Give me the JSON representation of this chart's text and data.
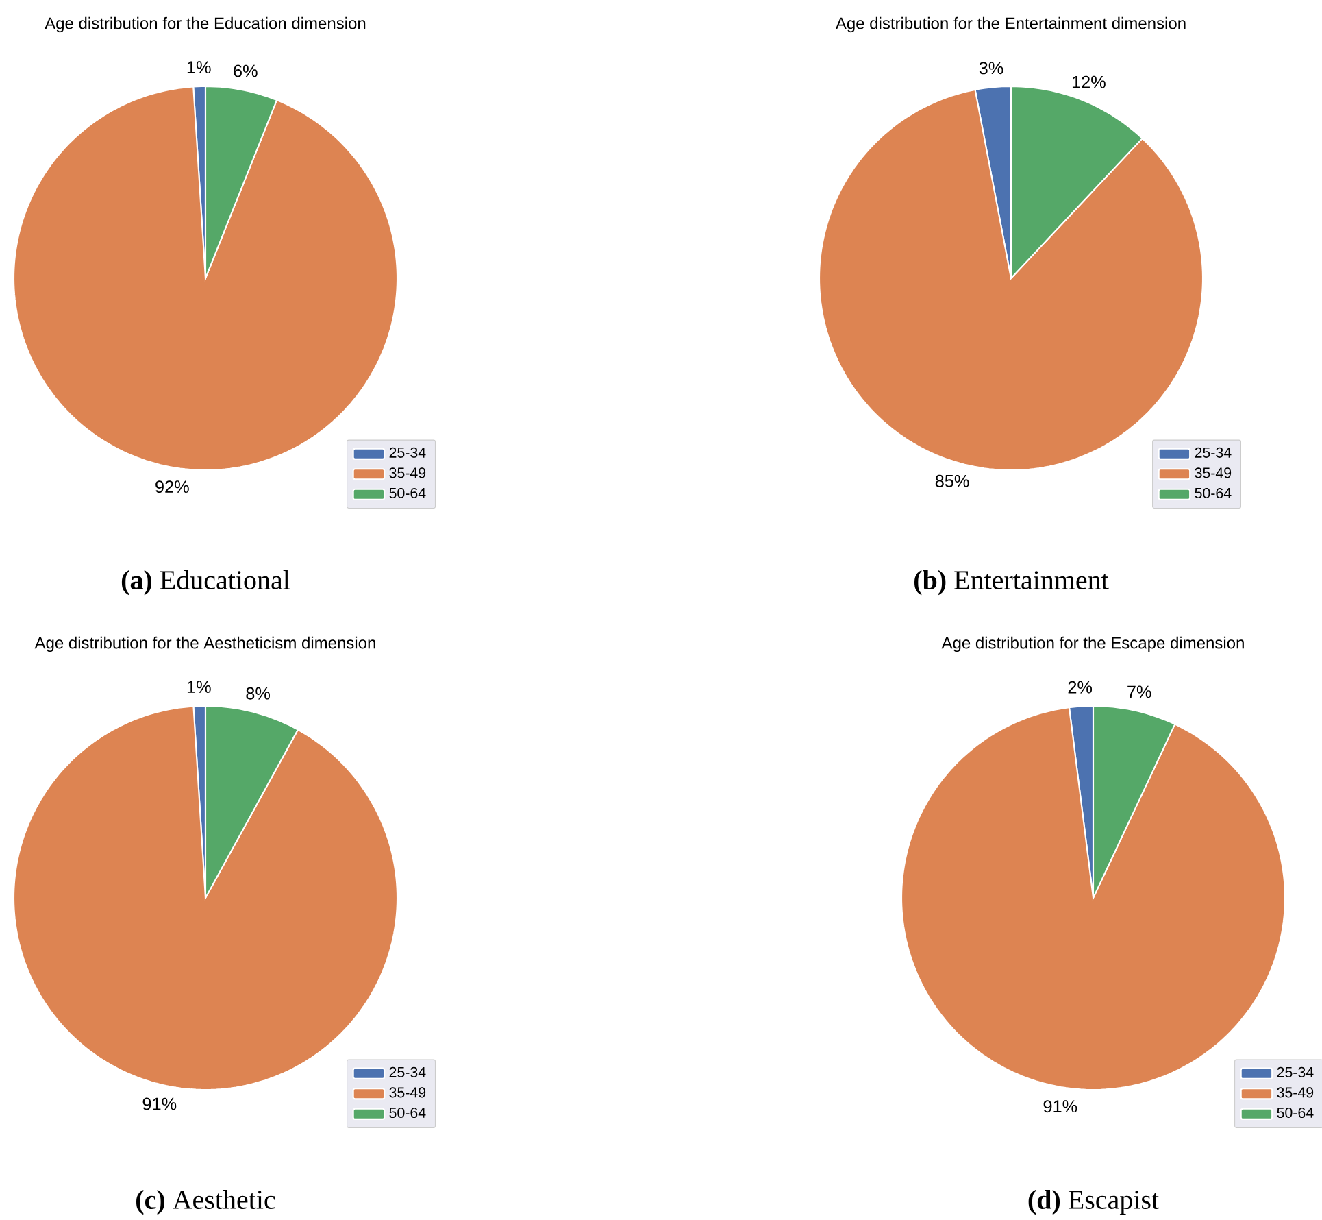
{
  "chart_data": [
    {
      "type": "pie",
      "title": "Age distribution for the Education dimension",
      "categories": [
        "25-34",
        "35-49",
        "50-64"
      ],
      "values": [
        1,
        92,
        6
      ],
      "colors": [
        "#4c72b0",
        "#dd8452",
        "#55a868"
      ],
      "value_labels": [
        "1%",
        "92%",
        "6%"
      ],
      "legend": "bottom right",
      "annotations": [
        "**(a)** Educational"
      ]
    },
    {
      "type": "pie",
      "title": "Age distribution for the Entertainment dimension",
      "categories": [
        "25-34",
        "35-49",
        "50-64"
      ],
      "values": [
        3,
        85,
        12
      ],
      "colors": [
        "#4c72b0",
        "#dd8452",
        "#55a868"
      ],
      "value_labels": [
        "3%",
        "85%",
        "12%"
      ],
      "legend": "bottom right",
      "annotations": [
        "**(b)** Entertainment"
      ]
    },
    {
      "type": "pie",
      "title": "Age distribution for the Aestheticism dimension",
      "categories": [
        "25-34",
        "35-49",
        "50-64"
      ],
      "values": [
        1,
        91,
        8
      ],
      "colors": [
        "#4c72b0",
        "#dd8452",
        "#55a868"
      ],
      "value_labels": [
        "1%",
        "91%",
        "8%"
      ],
      "legend": "bottom right",
      "annotations": [
        "**(c)** Aesthetic"
      ]
    },
    {
      "type": "pie",
      "title": "Age distribution for the Escape dimension",
      "categories": [
        "25-34",
        "35-49",
        "50-64"
      ],
      "values": [
        2,
        91,
        7
      ],
      "colors": [
        "#4c72b0",
        "#dd8452",
        "#55a868"
      ],
      "value_labels": [
        "2%",
        "91%",
        "7%"
      ],
      "legend": "bottom right",
      "annotations": [
        "**(d)** Escapist"
      ]
    }
  ]
}
